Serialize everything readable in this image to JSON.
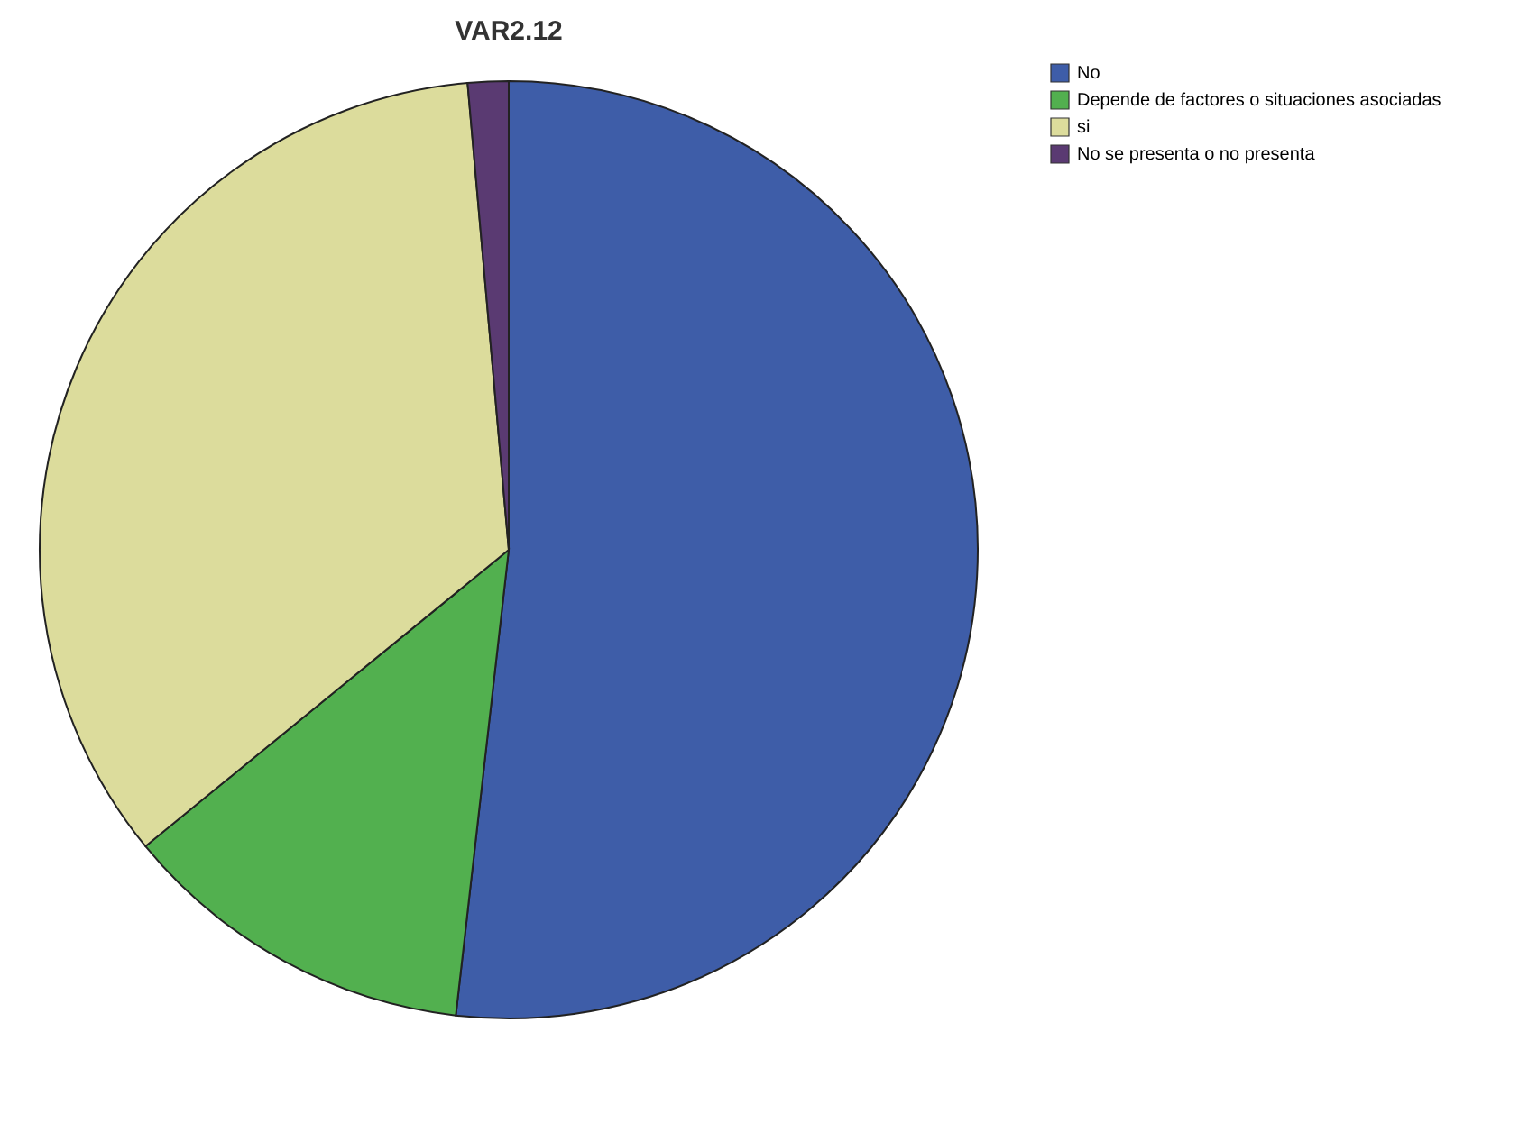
{
  "chart_data": {
    "type": "pie",
    "title": "VAR2.12",
    "categories": [
      "No",
      "Depende de factores o situaciones asociadas",
      "si",
      "No se presenta o no presenta"
    ],
    "values": [
      51.8,
      12.3,
      34.5,
      1.4
    ],
    "colors": [
      "#3e5da8",
      "#52b04f",
      "#dcdc9c",
      "#5a3a72"
    ],
    "legend": "top right"
  }
}
